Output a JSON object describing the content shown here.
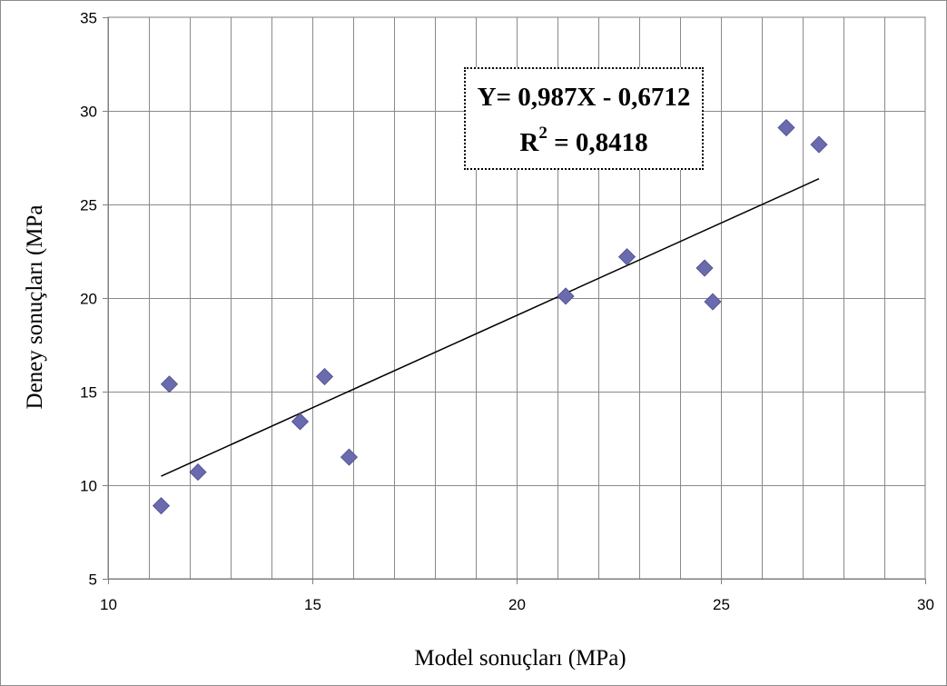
{
  "chart_data": {
    "type": "scatter",
    "xlabel": "Model sonuçları (MPa)",
    "ylabel": "Deney sonuçları (MPa",
    "xlim": [
      10,
      30
    ],
    "ylim": [
      5,
      35
    ],
    "x_ticks": [
      "10",
      "15",
      "20",
      "25",
      "30"
    ],
    "y_ticks": [
      "5",
      "10",
      "15",
      "20",
      "25",
      "30",
      "35"
    ],
    "grid": true,
    "marker": "diamond",
    "series": [
      {
        "color": "#6A6AAE",
        "points": [
          {
            "x": 11.3,
            "y": 8.9
          },
          {
            "x": 11.5,
            "y": 15.4
          },
          {
            "x": 12.2,
            "y": 10.7
          },
          {
            "x": 14.7,
            "y": 13.4
          },
          {
            "x": 15.3,
            "y": 15.8
          },
          {
            "x": 15.9,
            "y": 11.5
          },
          {
            "x": 21.2,
            "y": 20.1
          },
          {
            "x": 22.7,
            "y": 22.2
          },
          {
            "x": 24.6,
            "y": 21.6
          },
          {
            "x": 24.8,
            "y": 19.8
          },
          {
            "x": 26.6,
            "y": 29.1
          },
          {
            "x": 27.4,
            "y": 28.2
          }
        ]
      }
    ],
    "trendline": {
      "x_start": 11.3,
      "x_end": 27.4,
      "slope": 0.987,
      "intercept": -0.6712,
      "color": "#000000"
    },
    "annotation": {
      "equation": "Y= 0,987X - 0,6712",
      "r2_prefix": "R",
      "r2_sup": "2",
      "r2_value": " = 0,8418"
    }
  }
}
